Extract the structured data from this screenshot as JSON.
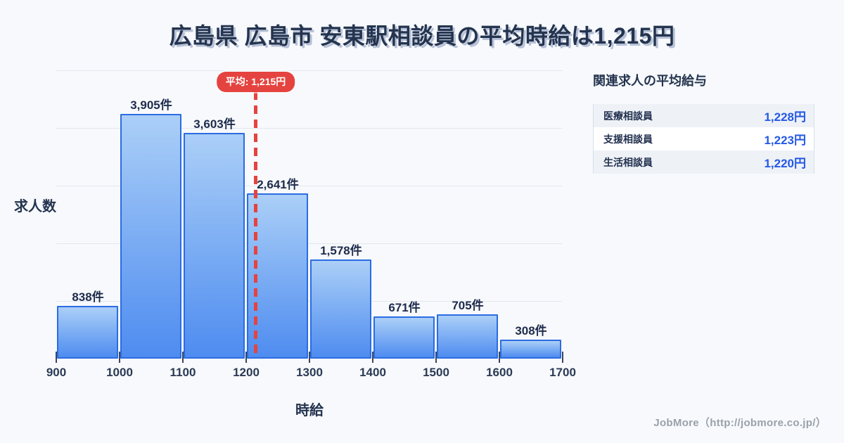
{
  "page": {
    "title": "広島県 広島市 安東駅相談員の平均時給は1,215円",
    "footer": "JobMore（http://jobmore.co.jp/）",
    "background_color": "#f7f9fc"
  },
  "chart_data": {
    "type": "bar",
    "title": "広島県 広島市 安東駅相談員の平均時給は1,215円",
    "xlabel": "時給",
    "ylabel": "求人数",
    "xlim": [
      900,
      1700
    ],
    "ylim": [
      0,
      4600
    ],
    "grid": true,
    "gridline_count": 5,
    "bin_edges": [
      900,
      1000,
      1100,
      1200,
      1300,
      1400,
      1500,
      1600,
      1700
    ],
    "x_tick_labels": [
      "900",
      "1000",
      "1100",
      "1200",
      "1300",
      "1400",
      "1500",
      "1600",
      "1700"
    ],
    "values": [
      838,
      3905,
      3603,
      2641,
      1578,
      671,
      705,
      308
    ],
    "bar_labels": [
      "838件",
      "3,905件",
      "3,603件",
      "2,641件",
      "1,578件",
      "671件",
      "705件",
      "308件"
    ],
    "average_line": {
      "value": 1215,
      "label": "平均: 1,215円",
      "color": "#e5433f"
    },
    "bar_style": {
      "border_color": "#2b6ce2",
      "gradient_top": "#abcff7",
      "gradient_bottom": "#4e8cf0"
    },
    "grid_color": "#e3e8f0"
  },
  "side_panel": {
    "title": "関連求人の平均給与",
    "rows": [
      {
        "label": "医療相談員",
        "value": "1,228円"
      },
      {
        "label": "支援相談員",
        "value": "1,223円"
      },
      {
        "label": "生活相談員",
        "value": "1,220円"
      }
    ],
    "value_color": "#2458e6"
  }
}
